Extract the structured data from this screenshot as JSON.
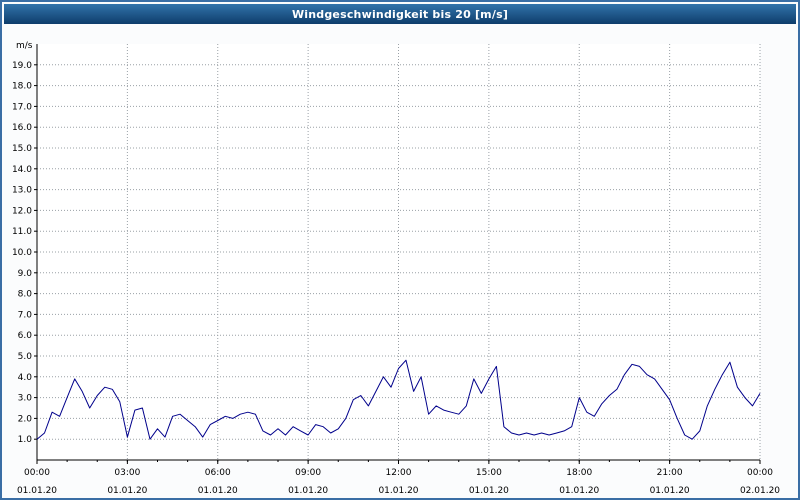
{
  "title": "Windgeschwindigkeit bis 20 [m/s]",
  "y_axis_unit_label": "m/s",
  "colors": {
    "line": "#00008b",
    "titlebar_top": "#3273ab",
    "titlebar_bottom": "#0e3d6b",
    "page_background": "#fbfcfd",
    "plot_background": "#ffffff",
    "grid": "#9aa0a6",
    "axis": "#000000",
    "border": "#3a6ea5",
    "text": "#000000",
    "title_text": "#ffffff"
  },
  "chart_data": {
    "type": "line",
    "title": "Windgeschwindigkeit bis 20 [m/s]",
    "xlabel": "",
    "ylabel": "m/s",
    "ylim": [
      0,
      20
    ],
    "y_tick_min": 1,
    "y_tick_max": 19,
    "y_tick_step": 1,
    "xlim_hours": [
      0,
      24
    ],
    "grid": true,
    "legend": "none",
    "x_ticks": [
      {
        "hour": 0,
        "time": "00:00",
        "date": "01.01.20"
      },
      {
        "hour": 3,
        "time": "03:00",
        "date": "01.01.20"
      },
      {
        "hour": 6,
        "time": "06:00",
        "date": "01.01.20"
      },
      {
        "hour": 9,
        "time": "09:00",
        "date": "01.01.20"
      },
      {
        "hour": 12,
        "time": "12:00",
        "date": "01.01.20"
      },
      {
        "hour": 15,
        "time": "15:00",
        "date": "01.01.20"
      },
      {
        "hour": 18,
        "time": "18:00",
        "date": "01.01.20"
      },
      {
        "hour": 21,
        "time": "21:00",
        "date": "01.01.20"
      },
      {
        "hour": 24,
        "time": "00:00",
        "date": "02.01.20"
      }
    ],
    "x_start_hour": 0,
    "x_step_hours": 0.25,
    "series": [
      {
        "name": "Windgeschwindigkeit",
        "values": [
          1.0,
          1.3,
          2.3,
          2.1,
          3.0,
          3.9,
          3.3,
          2.5,
          3.1,
          3.5,
          3.4,
          2.8,
          1.1,
          2.4,
          2.5,
          1.0,
          1.5,
          1.1,
          2.1,
          2.2,
          1.9,
          1.6,
          1.1,
          1.7,
          1.9,
          2.1,
          2.0,
          2.2,
          2.3,
          2.2,
          1.4,
          1.2,
          1.5,
          1.2,
          1.6,
          1.4,
          1.2,
          1.7,
          1.6,
          1.3,
          1.5,
          2.0,
          2.9,
          3.1,
          2.6,
          3.3,
          4.0,
          3.5,
          4.4,
          4.8,
          3.3,
          4.0,
          2.2,
          2.6,
          2.4,
          2.3,
          2.2,
          2.6,
          3.9,
          3.2,
          3.9,
          4.5,
          1.6,
          1.3,
          1.2,
          1.3,
          1.2,
          1.3,
          1.2,
          1.3,
          1.4,
          1.6,
          3.0,
          2.3,
          2.1,
          2.7,
          3.1,
          3.4,
          4.1,
          4.6,
          4.5,
          4.1,
          3.9,
          3.4,
          2.9,
          2.0,
          1.2,
          1.0,
          1.4,
          2.6,
          3.4,
          4.1,
          4.7,
          3.5,
          3.0,
          2.6,
          3.2
        ]
      }
    ]
  }
}
